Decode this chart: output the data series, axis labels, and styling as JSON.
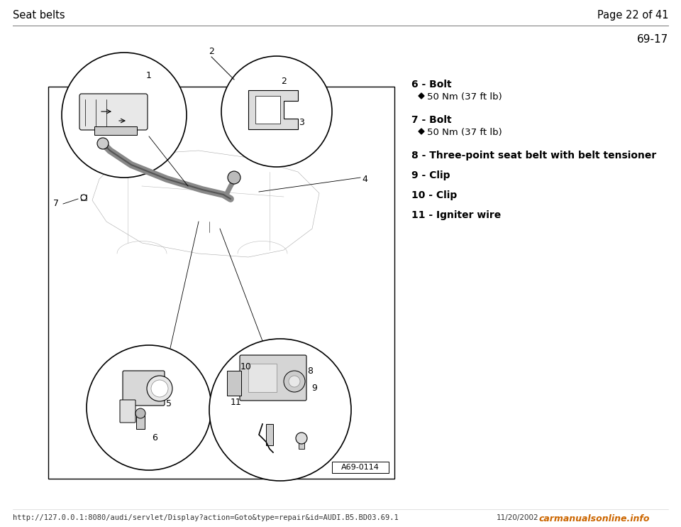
{
  "bg_color": "#ffffff",
  "header_left": "Seat belts",
  "header_right": "Page 22 of 41",
  "page_code": "69-17",
  "footer_url": "http://127.0.0.1:8080/audi/servlet/Display?action=Goto&type=repair&id=AUDI.B5.BD03.69.1",
  "footer_right": "11/20/2002",
  "footer_logo": "carmanualsonline.info",
  "items": [
    {
      "num": "6",
      "label": "Bolt",
      "sub": "50 Nm (37 ft lb)"
    },
    {
      "num": "7",
      "label": "Bolt",
      "sub": "50 Nm (37 ft lb)"
    },
    {
      "num": "8",
      "label": "Three-point seat belt with belt tensioner",
      "sub": null
    },
    {
      "num": "9",
      "label": "Clip",
      "sub": null
    },
    {
      "num": "10",
      "label": "Clip",
      "sub": null
    },
    {
      "num": "11",
      "label": "Igniter wire",
      "sub": null
    }
  ],
  "image_caption": "A69-0114",
  "header_font_size": 10.5,
  "item_font_size": 10,
  "sub_font_size": 9.5,
  "page_code_font_size": 11,
  "footer_font_size": 7.5
}
